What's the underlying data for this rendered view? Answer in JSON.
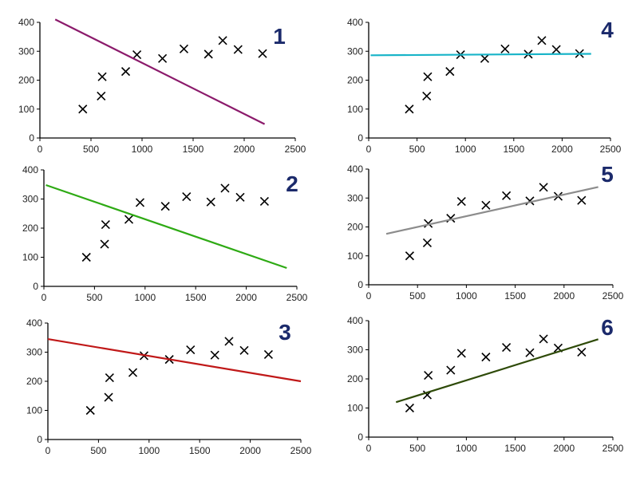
{
  "chart_data": [
    {
      "type": "scatter",
      "panel_label": "1",
      "xlim": [
        0,
        2500
      ],
      "ylim": [
        0,
        400
      ],
      "xticks": [
        "0",
        "500",
        "1000",
        "1500",
        "2000",
        "2500"
      ],
      "yticks": [
        "0",
        "100",
        "200",
        "300",
        "400"
      ],
      "grid": false,
      "points": {
        "x": [
          420,
          600,
          610,
          840,
          950,
          1200,
          1410,
          1650,
          1790,
          1940,
          2180
        ],
        "y": [
          100,
          145,
          212,
          230,
          288,
          275,
          308,
          290,
          337,
          306,
          292
        ]
      },
      "fit_line": {
        "x": [
          150,
          2200
        ],
        "y": [
          410,
          48
        ],
        "color": "#8b1a6b"
      }
    },
    {
      "type": "scatter",
      "panel_label": "2",
      "xlim": [
        0,
        2500
      ],
      "ylim": [
        0,
        400
      ],
      "xticks": [
        "0",
        "500",
        "1000",
        "1500",
        "2000",
        "2500"
      ],
      "yticks": [
        "0",
        "100",
        "200",
        "300",
        "400"
      ],
      "grid": false,
      "points": {
        "x": [
          420,
          600,
          610,
          840,
          950,
          1200,
          1410,
          1650,
          1790,
          1940,
          2180
        ],
        "y": [
          100,
          145,
          212,
          230,
          288,
          275,
          308,
          290,
          337,
          306,
          292
        ]
      },
      "fit_line": {
        "x": [
          20,
          2400
        ],
        "y": [
          348,
          63
        ],
        "color": "#2eaa14"
      }
    },
    {
      "type": "scatter",
      "panel_label": "3",
      "xlim": [
        0,
        2500
      ],
      "ylim": [
        0,
        400
      ],
      "xticks": [
        "0",
        "500",
        "1000",
        "1500",
        "2000",
        "2500"
      ],
      "yticks": [
        "0",
        "100",
        "200",
        "300",
        "400"
      ],
      "grid": false,
      "points": {
        "x": [
          420,
          600,
          610,
          840,
          950,
          1200,
          1410,
          1650,
          1790,
          1940,
          2180
        ],
        "y": [
          100,
          145,
          212,
          230,
          288,
          275,
          308,
          290,
          337,
          306,
          292
        ]
      },
      "fit_line": {
        "x": [
          0,
          2500
        ],
        "y": [
          345,
          200
        ],
        "color": "#c01818"
      }
    },
    {
      "type": "scatter",
      "panel_label": "4",
      "xlim": [
        0,
        2500
      ],
      "ylim": [
        0,
        400
      ],
      "xticks": [
        "0",
        "500",
        "1000",
        "1500",
        "2000",
        "2500"
      ],
      "yticks": [
        "0",
        "100",
        "200",
        "300",
        "400"
      ],
      "grid": false,
      "points": {
        "x": [
          420,
          600,
          610,
          840,
          950,
          1200,
          1410,
          1650,
          1790,
          1940,
          2180
        ],
        "y": [
          100,
          145,
          212,
          230,
          288,
          275,
          308,
          290,
          337,
          306,
          292
        ]
      },
      "fit_line": {
        "x": [
          20,
          2300
        ],
        "y": [
          286,
          291
        ],
        "color": "#18b4c8"
      }
    },
    {
      "type": "scatter",
      "panel_label": "5",
      "xlim": [
        0,
        2500
      ],
      "ylim": [
        0,
        400
      ],
      "xticks": [
        "0",
        "500",
        "1000",
        "1500",
        "2000",
        "2500"
      ],
      "yticks": [
        "0",
        "100",
        "200",
        "300",
        "400"
      ],
      "grid": false,
      "points": {
        "x": [
          420,
          600,
          610,
          840,
          950,
          1200,
          1410,
          1650,
          1790,
          1940,
          2180
        ],
        "y": [
          100,
          145,
          212,
          230,
          288,
          275,
          308,
          290,
          337,
          306,
          292
        ]
      },
      "fit_line": {
        "x": [
          180,
          2350
        ],
        "y": [
          176,
          338
        ],
        "color": "#8c8c8c"
      }
    },
    {
      "type": "scatter",
      "panel_label": "6",
      "xlim": [
        0,
        2500
      ],
      "ylim": [
        0,
        400
      ],
      "xticks": [
        "0",
        "500",
        "1000",
        "1500",
        "2000",
        "2500"
      ],
      "yticks": [
        "0",
        "100",
        "200",
        "300",
        "400"
      ],
      "grid": false,
      "points": {
        "x": [
          420,
          600,
          610,
          840,
          950,
          1200,
          1410,
          1650,
          1790,
          1940,
          2180
        ],
        "y": [
          100,
          145,
          212,
          230,
          288,
          275,
          308,
          290,
          337,
          306,
          292
        ]
      },
      "fit_line": {
        "x": [
          280,
          2350
        ],
        "y": [
          120,
          336
        ],
        "color": "#2e4a08"
      }
    }
  ]
}
